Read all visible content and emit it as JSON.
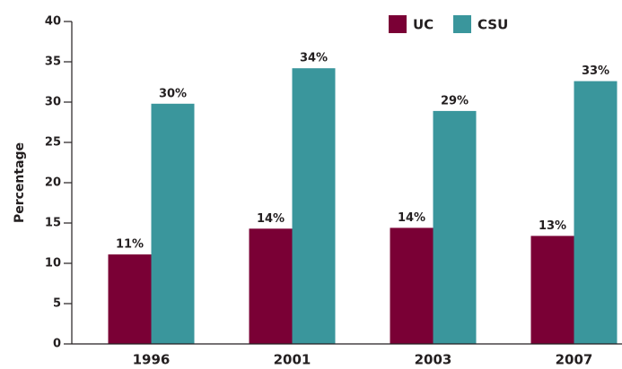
{
  "chart_data": {
    "type": "bar",
    "y_label": "Percentage",
    "categories": [
      "1996",
      "2001",
      "2003",
      "2007"
    ],
    "series": [
      {
        "name": "UC",
        "color": "#7a0035",
        "values": [
          11.1,
          14.3,
          14.4,
          13.4
        ],
        "value_labels": [
          "11%",
          "14%",
          "14%",
          "13%"
        ]
      },
      {
        "name": "CSU",
        "color": "#3a969c",
        "values": [
          29.8,
          34.2,
          28.9,
          32.6
        ],
        "value_labels": [
          "30%",
          "34%",
          "29%",
          "33%"
        ]
      }
    ],
    "ylim": [
      0,
      40
    ],
    "yticks": [
      0,
      5,
      10,
      15,
      20,
      25,
      30,
      35,
      40
    ],
    "legend": "top-right"
  }
}
